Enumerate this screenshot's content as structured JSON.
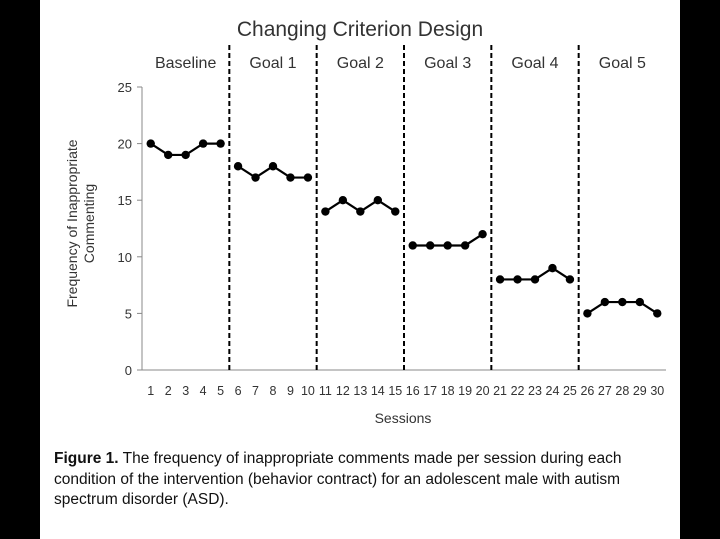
{
  "chart_data": {
    "type": "line",
    "title": "Changing Criterion Design",
    "xlabel": "Sessions",
    "ylabel_lines": [
      "Frequency of Inappropriate",
      "Commenting"
    ],
    "ylim": [
      0,
      25
    ],
    "xlim": [
      0.5,
      30.5
    ],
    "yticks": [
      0,
      5,
      10,
      15,
      20,
      25
    ],
    "xticks": [
      1,
      2,
      3,
      4,
      5,
      6,
      7,
      8,
      9,
      10,
      11,
      12,
      13,
      14,
      15,
      16,
      17,
      18,
      19,
      20,
      21,
      22,
      23,
      24,
      25,
      26,
      27,
      28,
      29,
      30
    ],
    "phase_change_after_sessions": [
      5.5,
      10.5,
      15.5,
      20.5,
      25.5
    ],
    "phases": [
      {
        "label": "Baseline",
        "x": [
          1,
          2,
          3,
          4,
          5
        ],
        "y": [
          20,
          19,
          19,
          20,
          20
        ]
      },
      {
        "label": "Goal 1",
        "x": [
          6,
          7,
          8,
          9,
          10
        ],
        "y": [
          18,
          17,
          18,
          17,
          17
        ]
      },
      {
        "label": "Goal 2",
        "x": [
          11,
          12,
          13,
          14,
          15
        ],
        "y": [
          14,
          15,
          14,
          15,
          14
        ]
      },
      {
        "label": "Goal 3",
        "x": [
          16,
          17,
          18,
          19,
          20
        ],
        "y": [
          11,
          11,
          11,
          11,
          12
        ]
      },
      {
        "label": "Goal 4",
        "x": [
          21,
          22,
          23,
          24,
          25
        ],
        "y": [
          8,
          8,
          8,
          9,
          8
        ]
      },
      {
        "label": "Goal 5",
        "x": [
          26,
          27,
          28,
          29,
          30
        ],
        "y": [
          5,
          6,
          6,
          6,
          5
        ]
      }
    ],
    "grid": false,
    "line_color": "#000000"
  },
  "caption": {
    "lead": "Figure 1.",
    "text": " The frequency of inappropriate comments made per session during each condition of the intervention (behavior contract) for an adolescent male with autism spectrum disorder (ASD)."
  }
}
